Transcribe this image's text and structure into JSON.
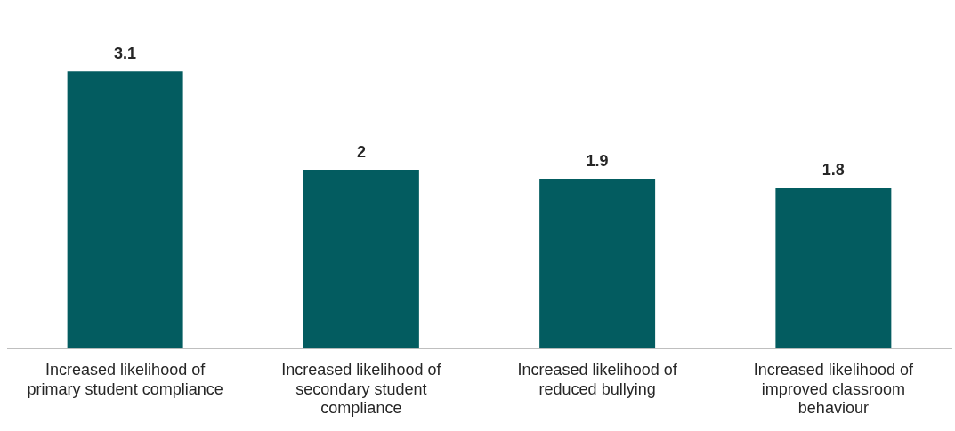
{
  "chart_data": {
    "type": "bar",
    "categories": [
      "Increased likelihood of primary student compliance",
      "Increased likelihood of secondary student compliance",
      "Increased likelihood of reduced bullying",
      "Increased likelihood of improved classroom behaviour"
    ],
    "values": [
      3.1,
      2,
      1.9,
      1.8
    ],
    "color": "#035c60",
    "data_labels": true,
    "grid": false,
    "legend": false
  }
}
